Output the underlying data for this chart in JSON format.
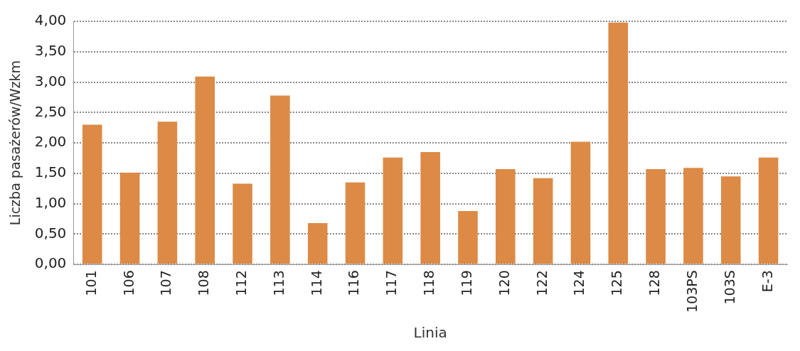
{
  "chart_data": {
    "type": "bar",
    "xlabel": "Linia",
    "ylabel": "Liczba pasażerów/Wzkm",
    "categories": [
      "101",
      "106",
      "107",
      "108",
      "112",
      "113",
      "114",
      "116",
      "117",
      "118",
      "119",
      "120",
      "122",
      "124",
      "125",
      "128",
      "103PS",
      "103S",
      "E-3"
    ],
    "values": [
      2.3,
      1.51,
      2.35,
      3.09,
      1.33,
      2.78,
      0.68,
      1.35,
      1.76,
      1.85,
      0.88,
      1.57,
      1.42,
      2.02,
      3.98,
      1.57,
      1.59,
      1.45,
      1.76
    ],
    "color": "#dc8a45",
    "ylim": [
      0,
      4
    ],
    "yticks": [
      {
        "value": 0,
        "label": "0,00"
      },
      {
        "value": 0.5,
        "label": "0,50"
      },
      {
        "value": 1,
        "label": "1,00"
      },
      {
        "value": 1.5,
        "label": "1,50"
      },
      {
        "value": 2,
        "label": "2,00"
      },
      {
        "value": 2.5,
        "label": "2,50"
      },
      {
        "value": 3,
        "label": "3,00"
      },
      {
        "value": 3.5,
        "label": "3,50"
      },
      {
        "value": 4,
        "label": "4,00"
      }
    ],
    "grid": "y",
    "legend": false
  }
}
